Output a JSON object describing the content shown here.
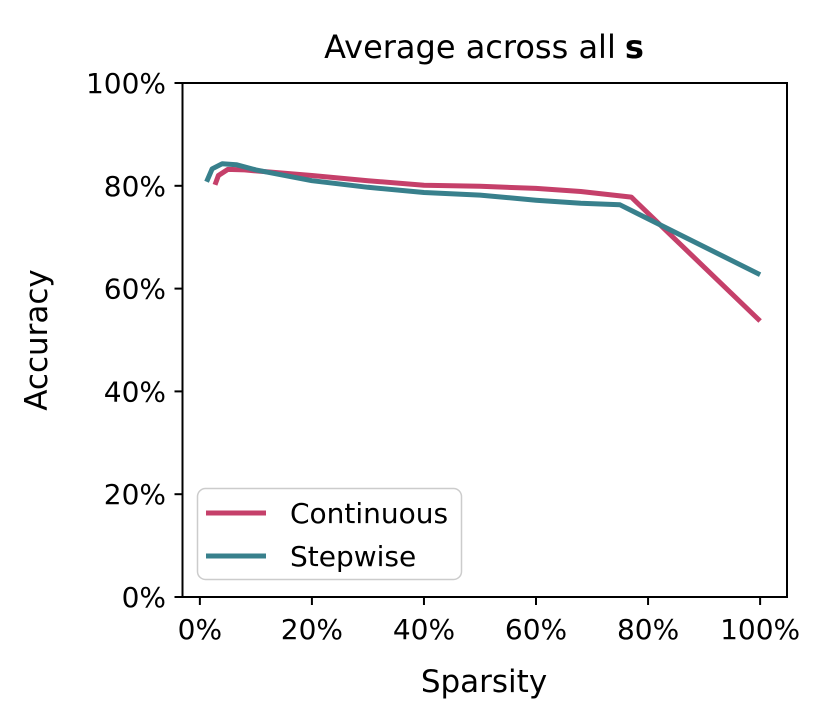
{
  "figure": {
    "background": "#ffffff"
  },
  "chart_data": {
    "type": "line",
    "title_prefix": "Average across all",
    "title_bold": "s",
    "xlabel": "Sparsity",
    "ylabel": "Accuracy",
    "xlim": [
      -3.1,
      104.8
    ],
    "ylim": [
      0,
      100
    ],
    "grid": false,
    "x_ticks": [
      {
        "value": 0,
        "label": "0%"
      },
      {
        "value": 20,
        "label": "20%"
      },
      {
        "value": 40,
        "label": "40%"
      },
      {
        "value": 60,
        "label": "60%"
      },
      {
        "value": 80,
        "label": "80%"
      },
      {
        "value": 100,
        "label": "100%"
      }
    ],
    "y_ticks": [
      {
        "value": 0,
        "label": "0%"
      },
      {
        "value": 20,
        "label": "20%"
      },
      {
        "value": 40,
        "label": "40%"
      },
      {
        "value": 60,
        "label": "60%"
      },
      {
        "value": 80,
        "label": "80%"
      },
      {
        "value": 100,
        "label": "100%"
      }
    ],
    "legend": {
      "position": "lower left",
      "border_color": "#cccccc"
    },
    "series": [
      {
        "name": "Continuous",
        "color": "#c5406a",
        "points": [
          [
            2.7,
            80.2
          ],
          [
            3.3,
            82.0
          ],
          [
            5,
            83.2
          ],
          [
            8,
            83.1
          ],
          [
            10,
            82.9
          ],
          [
            20,
            82.0
          ],
          [
            30,
            81.0
          ],
          [
            40,
            80.1
          ],
          [
            50,
            79.9
          ],
          [
            60,
            79.5
          ],
          [
            68,
            78.9
          ],
          [
            77,
            77.8
          ],
          [
            100,
            53.7
          ]
        ]
      },
      {
        "name": "Stepwise",
        "color": "#38808c",
        "points": [
          [
            1.2,
            80.8
          ],
          [
            2.2,
            83.3
          ],
          [
            4,
            84.3
          ],
          [
            6.5,
            84.1
          ],
          [
            10,
            83.1
          ],
          [
            20,
            81.0
          ],
          [
            30,
            79.7
          ],
          [
            40,
            78.7
          ],
          [
            50,
            78.2
          ],
          [
            60,
            77.2
          ],
          [
            68,
            76.6
          ],
          [
            75,
            76.3
          ],
          [
            100,
            62.7
          ]
        ]
      }
    ]
  }
}
